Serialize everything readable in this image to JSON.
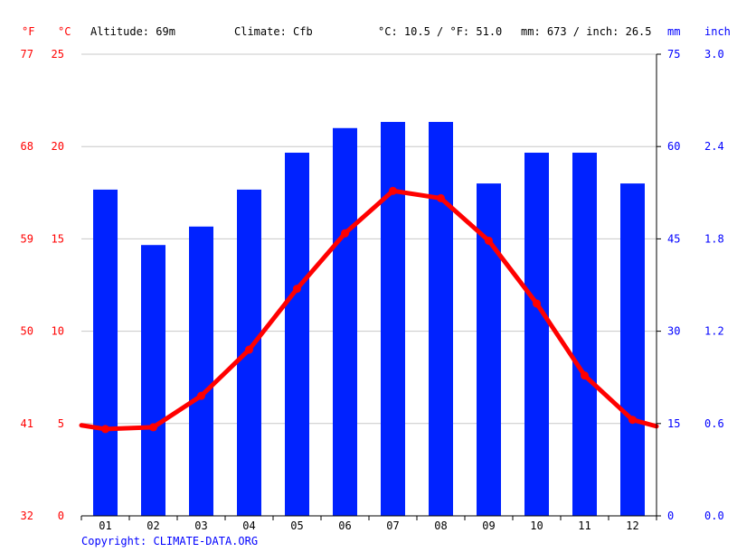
{
  "header": {
    "unit_f": "°F",
    "unit_c": "°C",
    "altitude": "Altitude: 69m",
    "climate": "Climate: Cfb",
    "temp_avg": "°C: 10.5 / °F: 51.0",
    "precip_total": "mm: 673 / inch: 26.5",
    "unit_mm": "mm",
    "unit_inch": "inch"
  },
  "footer": {
    "copyright": "Copyright: CLIMATE-DATA.ORG"
  },
  "colors": {
    "bar": "#0022ff",
    "line": "#ff0000",
    "left_axis": "#ff0000",
    "right_axis": "#0000ff",
    "grid": "#c8c8c8"
  },
  "chart_data": {
    "type": "bar",
    "categories": [
      "01",
      "02",
      "03",
      "04",
      "05",
      "06",
      "07",
      "08",
      "09",
      "10",
      "11",
      "12"
    ],
    "series": [
      {
        "kind": "bar",
        "axis": "right",
        "unit": "mm",
        "values": [
          53,
          44,
          47,
          53,
          59,
          63,
          64,
          64,
          54,
          59,
          59,
          54
        ]
      },
      {
        "kind": "line",
        "axis": "left",
        "unit": "°C",
        "values": [
          4.7,
          4.8,
          6.5,
          9.0,
          12.3,
          15.3,
          17.6,
          17.2,
          14.9,
          11.5,
          7.6,
          5.2
        ]
      }
    ],
    "left_axis": {
      "c_ticks": [
        "0",
        "5",
        "10",
        "15",
        "20",
        "25"
      ],
      "f_ticks": [
        "32",
        "41",
        "50",
        "59",
        "68",
        "77"
      ],
      "ylim": [
        0,
        25
      ]
    },
    "right_axis": {
      "mm_ticks": [
        "0",
        "15",
        "30",
        "45",
        "60",
        "75"
      ],
      "inch_ticks": [
        "0.0",
        "0.6",
        "1.2",
        "1.8",
        "2.4",
        "3.0"
      ],
      "ylim": [
        0,
        75
      ]
    },
    "grid": true
  }
}
